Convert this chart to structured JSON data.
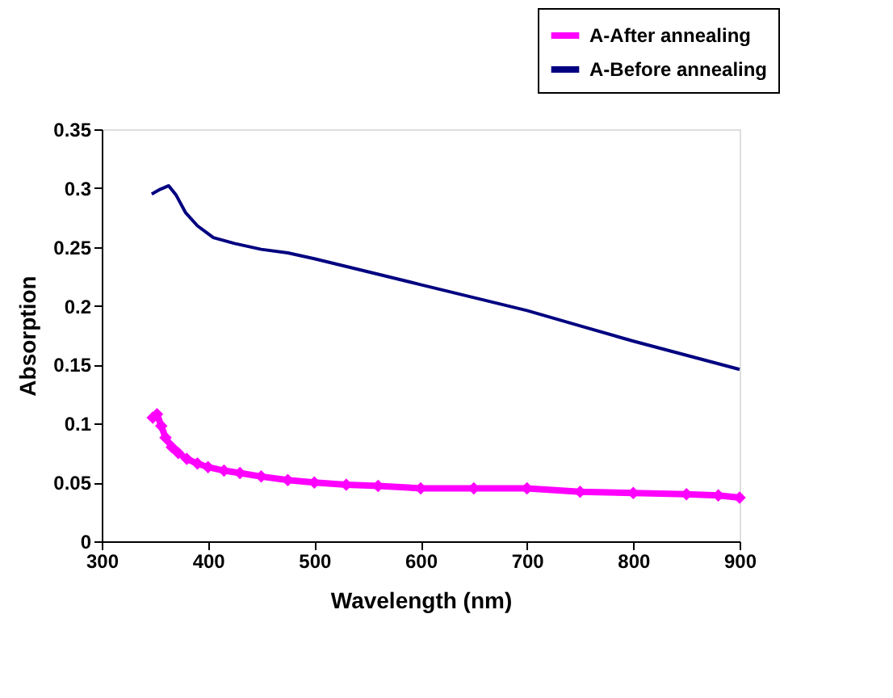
{
  "chart_data": {
    "type": "line",
    "xlabel": "Wavelength (nm)",
    "ylabel": "Absorption",
    "xlim": [
      300,
      900
    ],
    "xticks": [
      300,
      400,
      500,
      600,
      700,
      800,
      900
    ],
    "ylim": [
      0,
      0.35
    ],
    "yticks": [
      0,
      0.05,
      0.1,
      0.15,
      0.2,
      0.25,
      0.3,
      0.35
    ],
    "grid": false,
    "legend": "top right",
    "series": [
      {
        "name": "A-After annealing",
        "color": "#ff00ff",
        "marker": "diamond",
        "x": [
          348,
          352,
          356,
          360,
          366,
          372,
          380,
          390,
          400,
          415,
          430,
          450,
          475,
          500,
          530,
          560,
          600,
          650,
          700,
          750,
          800,
          850,
          880,
          900
        ],
        "values": [
          0.105,
          0.108,
          0.098,
          0.088,
          0.08,
          0.075,
          0.07,
          0.066,
          0.063,
          0.06,
          0.058,
          0.055,
          0.052,
          0.05,
          0.048,
          0.047,
          0.045,
          0.045,
          0.045,
          0.042,
          0.041,
          0.04,
          0.039,
          0.037
        ]
      },
      {
        "name": "A-Before annealing",
        "color": "#000080",
        "marker": "none",
        "x": [
          347,
          355,
          363,
          370,
          379,
          390,
          405,
          425,
          450,
          475,
          500,
          550,
          600,
          650,
          700,
          750,
          800,
          850,
          900
        ],
        "values": [
          0.295,
          0.299,
          0.302,
          0.294,
          0.279,
          0.268,
          0.258,
          0.253,
          0.248,
          0.245,
          0.24,
          0.229,
          0.218,
          0.207,
          0.196,
          0.183,
          0.17,
          0.158,
          0.146
        ]
      }
    ]
  }
}
